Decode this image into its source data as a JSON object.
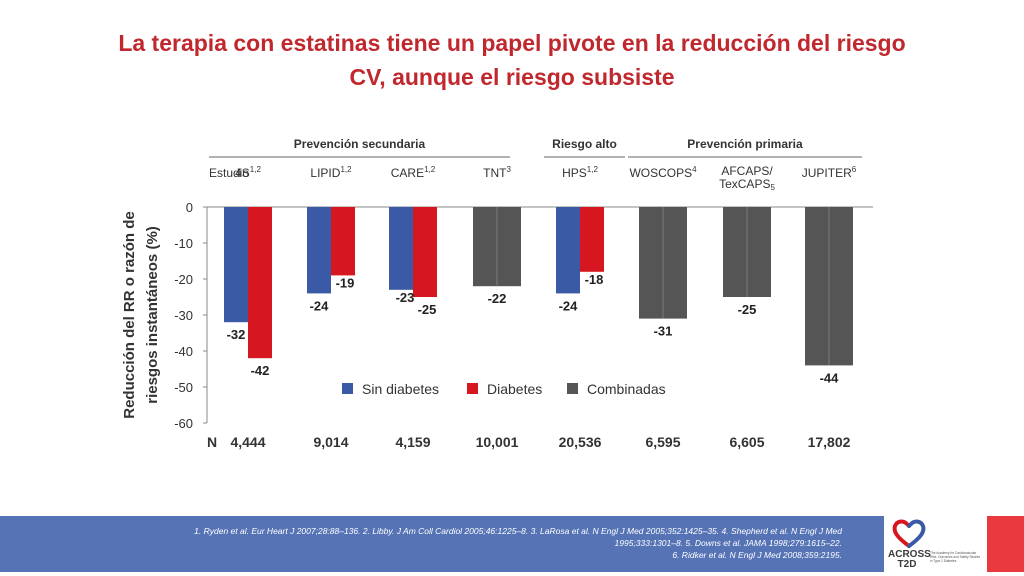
{
  "title": {
    "line1": "La terapia con estatinas tiene un papel pivote en la reducción del riesgo",
    "line2": "CV, aunque el riesgo subsiste"
  },
  "colors": {
    "title": "#c0282e",
    "sin_diabetes": "#3a5aa6",
    "diabetes": "#d7171f",
    "combinadas": "#555555",
    "footer": "#5573b5",
    "accent_red": "#e8393e"
  },
  "chart_data": {
    "type": "bar",
    "ylabel_line1": "Reducción del RR o razón de",
    "ylabel_line2": "riesgos instantáneos (%)",
    "ylim": [
      -60,
      0
    ],
    "yticks": [
      "0",
      "-10",
      "-20",
      "-30",
      "-40",
      "-50",
      "-60"
    ],
    "ytick_values": [
      0,
      -10,
      -20,
      -30,
      -40,
      -50,
      -60
    ],
    "groups": [
      {
        "label": "Prevención secundaria",
        "from": 0,
        "to": 3
      },
      {
        "label": "Riesgo alto",
        "from": 4,
        "to": 4
      },
      {
        "label": "Prevención primaria",
        "from": 5,
        "to": 7
      }
    ],
    "row_label": "Estudio",
    "n_label": "N",
    "studies": [
      {
        "name": "4S",
        "sup": "1,2",
        "sin_diabetes": -32,
        "diabetes": -42,
        "combinadas": null,
        "sin_label": "-32",
        "dia_label": "-42",
        "comb_label": "",
        "n": "4,444"
      },
      {
        "name": "LIPID",
        "sup": "1,2",
        "sin_diabetes": -24,
        "diabetes": -19,
        "combinadas": null,
        "sin_label": "-24",
        "dia_label": "-19",
        "comb_label": "",
        "n": "9,014"
      },
      {
        "name": "CARE",
        "sup": "1,2",
        "sin_diabetes": -23,
        "diabetes": -25,
        "combinadas": null,
        "sin_label": "-23",
        "dia_label": "-25",
        "comb_label": "",
        "n": "4,159"
      },
      {
        "name": "TNT",
        "sup": "3",
        "sin_diabetes": null,
        "diabetes": null,
        "combinadas": -22,
        "sin_label": "",
        "dia_label": "",
        "comb_label": "-22",
        "n": "10,001"
      },
      {
        "name": "HPS",
        "sup": "1,2",
        "sin_diabetes": -24,
        "diabetes": -18,
        "combinadas": null,
        "sin_label": "-24",
        "dia_label": "-18",
        "comb_label": "",
        "n": "20,536"
      },
      {
        "name": "WOSCOPS",
        "sup": "4",
        "sin_diabetes": null,
        "diabetes": null,
        "combinadas": -31,
        "sin_label": "",
        "dia_label": "",
        "comb_label": "-31",
        "n": "6,595"
      },
      {
        "name": "AFCAPS/",
        "name2": "TexCAPS",
        "sup": "5",
        "sin_diabetes": null,
        "diabetes": null,
        "combinadas": -25,
        "sin_label": "",
        "dia_label": "",
        "comb_label": "-25",
        "n": "6,605"
      },
      {
        "name": "JUPITER",
        "sup": "6",
        "sin_diabetes": null,
        "diabetes": null,
        "combinadas": -44,
        "sin_label": "",
        "dia_label": "",
        "comb_label": "-44",
        "n": "17,802"
      }
    ],
    "legend": [
      {
        "key": "sin_diabetes",
        "label": "Sin diabetes"
      },
      {
        "key": "diabetes",
        "label": "Diabetes"
      },
      {
        "key": "combinadas",
        "label": "Combinadas"
      }
    ]
  },
  "footer": {
    "line1": "1. Ryden et al. Eur Heart J 2007;28:88–136. 2. Libby. J Am Coll Cardiol 2005;46:1225–8.  3. LaRosa et al. N Engl J Med 2005;352:1425–35. 4. Shepherd et al. N Engl J Med",
    "line2": "1995;333:1301–8.  5. Downs et al. JAMA 1998;279:1615–22.",
    "line3": "6. Ridker et al. N Engl J Med 2008;359:2195."
  },
  "logo": {
    "line1": "ACROSS",
    "line2": "T2D",
    "tagline": "The Academy for Cardiovascular Risk, Outcomes and Safety Studies in Type 2 Diabetes"
  }
}
